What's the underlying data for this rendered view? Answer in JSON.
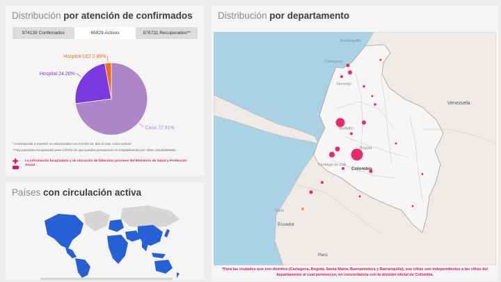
{
  "distribution": {
    "title_light": "Distribución",
    "title_bold": "por atención de confirmados",
    "tabs": [
      {
        "label": "974139 Confirmados",
        "active": false
      },
      {
        "label": "65929 Activos",
        "active": true
      },
      {
        "label": "876731 Recuperados**",
        "active": false
      }
    ],
    "notes": [
      "* Corresponde a muertes no relacionadas con COVID-19, aún si eran casos activos",
      "**Hay pacientes recuperados para COVID-19, que pueden permanecer en hospitalización por otras comorbilidades"
    ],
    "warning": "La información hospitalaria y de ubicación de fallecidos proviene del Ministerio de Salud y Protección Social"
  },
  "chart_data": {
    "type": "pie",
    "slices": [
      {
        "label": "Casa",
        "value": 72.91,
        "display": "Casa 72.91%",
        "color": "#ad86c9"
      },
      {
        "label": "Hospital",
        "value": 24.2,
        "display": "Hospital 24.20%",
        "color": "#7a3ae0"
      },
      {
        "label": "Hospital UCI",
        "value": 2.89,
        "display": "Hospital UCI 2.89%",
        "color": "#f06a16"
      }
    ]
  },
  "paises": {
    "title_light": "Países",
    "title_bold": "con circulación activa",
    "colors": {
      "active": "#2660d6",
      "inactive": "#d6d6d6"
    }
  },
  "department": {
    "title_light": "Distribución",
    "title_bold": "por departamento",
    "labels": {
      "barranquilla": "Barranquilla",
      "cartagena": "Cartagena",
      "venezuela": "Venezuela",
      "medellin": "Medellín",
      "bogota": "Bogotá",
      "colombia": "Colombia",
      "santiago_de_cali": "Santiago de Cali",
      "ecuador": "Ecuador",
      "quito": "Quito",
      "peru": "Perú",
      "sincelejo": "Sincelejo"
    },
    "note": "*Para las ciudades que son distritos (Cartagena, Bogotá, Santa Marta, Buenaventura y Barranquilla), sus cifras son independientes a las cifras del departamento al cual pertenecen, en concordancia con la división oficial de Colombia."
  }
}
